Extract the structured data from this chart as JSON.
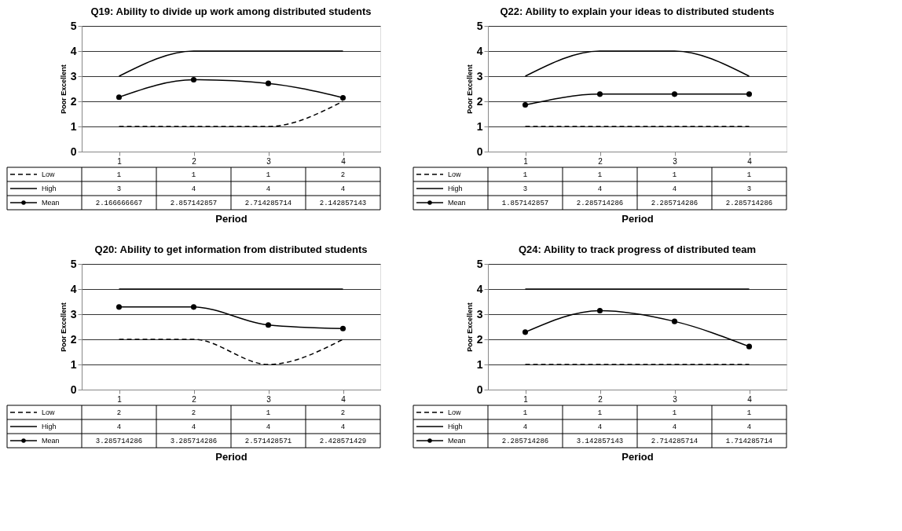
{
  "chart_data": [
    {
      "type": "line",
      "title": "Q19: Ability to divide up work among distributed students",
      "xlabel": "Period",
      "ylabel": "Poor Excellent",
      "categories": [
        "1",
        "2",
        "3",
        "4"
      ],
      "ylim": [
        0,
        5
      ],
      "yticks": [
        0,
        1,
        2,
        3,
        4,
        5
      ],
      "grid": "y",
      "legend": "left",
      "series": [
        {
          "name": "Low",
          "color": "#000000",
          "line_style": "dashed",
          "marker": "none",
          "values": [
            1,
            1,
            1,
            2
          ],
          "value_labels": [
            "1",
            "1",
            "1",
            "2"
          ]
        },
        {
          "name": "High",
          "color": "#000000",
          "line_style": "solid",
          "marker": "none",
          "values": [
            3,
            4,
            4,
            4
          ],
          "value_labels": [
            "3",
            "4",
            "4",
            "4"
          ]
        },
        {
          "name": "Mean",
          "color": "#000000",
          "line_style": "solid",
          "marker": "circle",
          "values": [
            2.166666667,
            2.857142857,
            2.714285714,
            2.142857143
          ],
          "value_labels": [
            "2.166666667",
            "2.857142857",
            "2.714285714",
            "2.142857143"
          ]
        }
      ]
    },
    {
      "type": "line",
      "title": "Q22: Ability to explain your ideas to distributed students",
      "xlabel": "Period",
      "ylabel": "Poor Excellent",
      "categories": [
        "1",
        "2",
        "3",
        "4"
      ],
      "ylim": [
        0,
        5
      ],
      "yticks": [
        0,
        1,
        2,
        3,
        4,
        5
      ],
      "grid": "y",
      "legend": "left",
      "series": [
        {
          "name": "Low",
          "color": "#000000",
          "line_style": "dashed",
          "marker": "none",
          "values": [
            1,
            1,
            1,
            1
          ],
          "value_labels": [
            "1",
            "1",
            "1",
            "1"
          ]
        },
        {
          "name": "High",
          "color": "#000000",
          "line_style": "solid",
          "marker": "none",
          "values": [
            3,
            4,
            4,
            3
          ],
          "value_labels": [
            "3",
            "4",
            "4",
            "3"
          ]
        },
        {
          "name": "Mean",
          "color": "#000000",
          "line_style": "solid",
          "marker": "circle",
          "values": [
            1.857142857,
            2.285714286,
            2.285714286,
            2.285714286
          ],
          "value_labels": [
            "1.857142857",
            "2.285714286",
            "2.285714286",
            "2.285714286"
          ]
        }
      ]
    },
    {
      "type": "line",
      "title": "Q20: Ability to get information from distributed students",
      "xlabel": "Period",
      "ylabel": "Poor Excellent",
      "categories": [
        "1",
        "2",
        "3",
        "4"
      ],
      "ylim": [
        0,
        5
      ],
      "yticks": [
        0,
        1,
        2,
        3,
        4,
        5
      ],
      "grid": "y",
      "legend": "left",
      "series": [
        {
          "name": "Low",
          "color": "#000000",
          "line_style": "dashed",
          "marker": "none",
          "values": [
            2,
            2,
            1,
            2
          ],
          "value_labels": [
            "2",
            "2",
            "1",
            "2"
          ]
        },
        {
          "name": "High",
          "color": "#000000",
          "line_style": "solid",
          "marker": "none",
          "values": [
            4,
            4,
            4,
            4
          ],
          "value_labels": [
            "4",
            "4",
            "4",
            "4"
          ]
        },
        {
          "name": "Mean",
          "color": "#000000",
          "line_style": "solid",
          "marker": "circle",
          "values": [
            3.285714286,
            3.285714286,
            2.571428571,
            2.428571429
          ],
          "value_labels": [
            "3.285714286",
            "3.285714286",
            "2.571428571",
            "2.428571429"
          ]
        }
      ]
    },
    {
      "type": "line",
      "title": "Q24: Ability to track progress of distributed team",
      "xlabel": "Period",
      "ylabel": "Poor Excellent",
      "categories": [
        "1",
        "2",
        "3",
        "4"
      ],
      "ylim": [
        0,
        5
      ],
      "yticks": [
        0,
        1,
        2,
        3,
        4,
        5
      ],
      "grid": "y",
      "legend": "left",
      "series": [
        {
          "name": "Low",
          "color": "#000000",
          "line_style": "dashed",
          "marker": "none",
          "values": [
            1,
            1,
            1,
            1
          ],
          "value_labels": [
            "1",
            "1",
            "1",
            "1"
          ]
        },
        {
          "name": "High",
          "color": "#000000",
          "line_style": "solid",
          "marker": "none",
          "values": [
            4,
            4,
            4,
            4
          ],
          "value_labels": [
            "4",
            "4",
            "4",
            "4"
          ]
        },
        {
          "name": "Mean",
          "color": "#000000",
          "line_style": "solid",
          "marker": "circle",
          "values": [
            2.285714286,
            3.142857143,
            2.714285714,
            1.714285714
          ],
          "value_labels": [
            "2.285714286",
            "3.142857143",
            "2.714285714",
            "1.714285714"
          ]
        }
      ]
    }
  ]
}
